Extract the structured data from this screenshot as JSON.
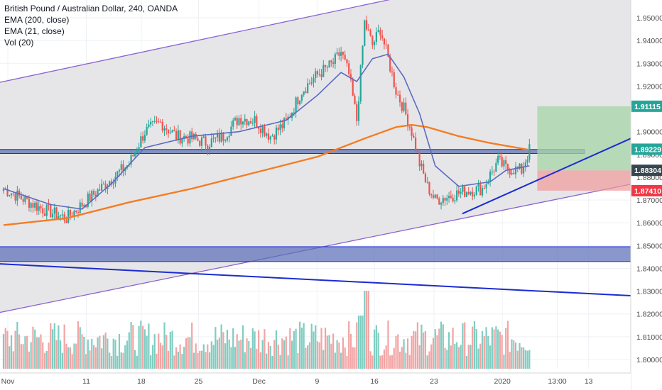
{
  "legend": {
    "symbol": "British Pound / Australian Dollar, 240, OANDA",
    "ema200": "EMA (200, close)",
    "ema21": "EMA (21, close)",
    "vol": "Vol (20)"
  },
  "chart_data": {
    "type": "candlestick",
    "y_ticks": [
      "1.95000",
      "1.94000",
      "1.93000",
      "1.92000",
      "1.91000",
      "1.90000",
      "1.89000",
      "1.88000",
      "1.87000",
      "1.86000",
      "1.85000",
      "1.84000",
      "1.83000",
      "1.82000",
      "1.81000",
      "1.80000"
    ],
    "ylim": [
      1.797,
      1.9555
    ],
    "x_ticks": [
      "Nov",
      "11",
      "18",
      "25",
      "Dec",
      "9",
      "16",
      "23",
      "2020",
      "13:00",
      "13"
    ],
    "price_badges": [
      {
        "label": "1.91115",
        "value": 1.91115,
        "color": "#26a69a"
      },
      {
        "label": "1.89229",
        "value": 1.89229,
        "color": "#26a69a"
      },
      {
        "label": "1.88304",
        "value": 1.88304,
        "color": "#37474f"
      },
      {
        "label": "1.87410",
        "value": 1.8741,
        "color": "#f23645"
      }
    ],
    "key_prices": [
      {
        "x_day": 0,
        "close": 1.875
      },
      {
        "x_day": 5,
        "close": 1.866
      },
      {
        "x_day": 8,
        "close": 1.862
      },
      {
        "x_day": 12,
        "close": 1.874
      },
      {
        "x_day": 16,
        "close": 1.886
      },
      {
        "x_day": 18,
        "close": 1.9
      },
      {
        "x_day": 20,
        "close": 1.904
      },
      {
        "x_day": 22,
        "close": 1.898
      },
      {
        "x_day": 24,
        "close": 1.897
      },
      {
        "x_day": 26,
        "close": 1.895
      },
      {
        "x_day": 28,
        "close": 1.898
      },
      {
        "x_day": 30,
        "close": 1.906
      },
      {
        "x_day": 32,
        "close": 1.905
      },
      {
        "x_day": 34,
        "close": 1.898
      },
      {
        "x_day": 36,
        "close": 1.904
      },
      {
        "x_day": 38,
        "close": 1.918
      },
      {
        "x_day": 40,
        "close": 1.925
      },
      {
        "x_day": 42,
        "close": 1.93
      },
      {
        "x_day": 43,
        "close": 1.935
      },
      {
        "x_day": 44,
        "close": 1.925
      },
      {
        "x_day": 45,
        "close": 1.905
      },
      {
        "x_day": 46,
        "close": 1.948
      },
      {
        "x_day": 47,
        "close": 1.938
      },
      {
        "x_day": 48,
        "close": 1.945
      },
      {
        "x_day": 49,
        "close": 1.932
      },
      {
        "x_day": 50,
        "close": 1.918
      },
      {
        "x_day": 51,
        "close": 1.91
      },
      {
        "x_day": 52,
        "close": 1.9
      },
      {
        "x_day": 53,
        "close": 1.886
      },
      {
        "x_day": 54,
        "close": 1.876
      },
      {
        "x_day": 55,
        "close": 1.87
      },
      {
        "x_day": 57,
        "close": 1.872
      },
      {
        "x_day": 59,
        "close": 1.874
      },
      {
        "x_day": 61,
        "close": 1.875
      },
      {
        "x_day": 63,
        "close": 1.887
      },
      {
        "x_day": 64,
        "close": 1.884
      },
      {
        "x_day": 66,
        "close": 1.883
      },
      {
        "x_day": 67,
        "close": 1.892
      }
    ],
    "ema200_points": [
      [
        0,
        1.859
      ],
      [
        8,
        1.862
      ],
      [
        16,
        1.869
      ],
      [
        24,
        1.875
      ],
      [
        32,
        1.882
      ],
      [
        40,
        1.889
      ],
      [
        46,
        1.897
      ],
      [
        50,
        1.902
      ],
      [
        52,
        1.903
      ],
      [
        54,
        1.902
      ],
      [
        58,
        1.898
      ],
      [
        62,
        1.895
      ],
      [
        67,
        1.892
      ]
    ],
    "ema21_points": [
      [
        0,
        1.875
      ],
      [
        6,
        1.868
      ],
      [
        10,
        1.866
      ],
      [
        14,
        1.878
      ],
      [
        18,
        1.893
      ],
      [
        24,
        1.898
      ],
      [
        30,
        1.9
      ],
      [
        36,
        1.905
      ],
      [
        40,
        1.916
      ],
      [
        43,
        1.926
      ],
      [
        45,
        1.922
      ],
      [
        47,
        1.932
      ],
      [
        49,
        1.934
      ],
      [
        51,
        1.924
      ],
      [
        53,
        1.908
      ],
      [
        55,
        1.885
      ],
      [
        58,
        1.876
      ],
      [
        62,
        1.878
      ],
      [
        64,
        1.883
      ],
      [
        67,
        1.885
      ]
    ],
    "channel_upper": [
      [
        0,
        1.922
      ],
      [
        52,
        1.96
      ]
    ],
    "channel_lower": [
      [
        0,
        1.821
      ],
      [
        80,
        1.877
      ]
    ],
    "zones": [
      {
        "name": "resistance",
        "ymin": 1.8904,
        "ymax": 1.8922,
        "x_start_day": 0,
        "x_end_day": 74,
        "color": "#5b6fb8"
      },
      {
        "name": "support",
        "ymin": 1.843,
        "ymax": 1.8495,
        "x_start_day": 0,
        "x_end_day": 80,
        "color": "#5b6fb8"
      }
    ],
    "trade_box": {
      "x_start_day": 68,
      "x_end_day": 80,
      "entry": 1.883,
      "target": 1.91115,
      "stop": 1.8741
    },
    "trendlines": [
      {
        "name": "rising",
        "from": [
          59,
          1.864
        ],
        "to": [
          80,
          1.897
        ],
        "color": "#1c2bd1"
      },
      {
        "name": "falling",
        "from": [
          0,
          1.842
        ],
        "to": [
          80,
          1.828
        ],
        "color": "#1c2bd1"
      }
    ]
  }
}
